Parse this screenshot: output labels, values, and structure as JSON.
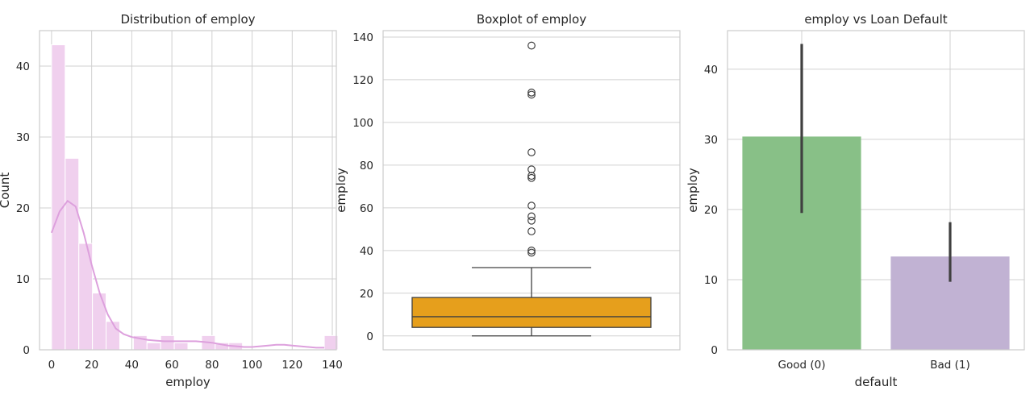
{
  "chart_data": [
    {
      "type": "histogram",
      "title": "Distribution of employ",
      "xlabel": "employ",
      "ylabel": "Count",
      "xlim": [
        -6,
        142
      ],
      "ylim": [
        0,
        45
      ],
      "xticks": [
        0,
        20,
        40,
        60,
        80,
        100,
        120,
        140
      ],
      "yticks": [
        0,
        10,
        20,
        30,
        40
      ],
      "bar_color": "#f0d0ee",
      "kde_color": "#dda0dd",
      "bin_width": 6.8,
      "bin_edges_start": 0,
      "counts": [
        43,
        27,
        15,
        8,
        4,
        0,
        2,
        1,
        2,
        1,
        0,
        2,
        1,
        1,
        0,
        0,
        0,
        0,
        0,
        0,
        2,
        0,
        0,
        0,
        0,
        0,
        0,
        0
      ],
      "kde": {
        "x": [
          0,
          4,
          8,
          12,
          16,
          20,
          24,
          28,
          32,
          36,
          40,
          44,
          48,
          52,
          56,
          60,
          64,
          68,
          72,
          76,
          80,
          84,
          88,
          92,
          96,
          100,
          104,
          108,
          112,
          116,
          120,
          124,
          128,
          132,
          136
        ],
        "y": [
          16.5,
          19.5,
          21,
          20.2,
          16.5,
          12,
          8,
          5,
          3,
          2.2,
          1.8,
          1.6,
          1.4,
          1.3,
          1.2,
          1.2,
          1.2,
          1.2,
          1.2,
          1.1,
          1.0,
          0.8,
          0.6,
          0.5,
          0.4,
          0.4,
          0.5,
          0.6,
          0.7,
          0.7,
          0.6,
          0.5,
          0.4,
          0.3,
          0.3
        ]
      },
      "grid": true
    },
    {
      "type": "box",
      "title": "Boxplot of employ",
      "ylabel": "employ",
      "ylim": [
        -6.5,
        143
      ],
      "yticks": [
        0,
        20,
        40,
        60,
        80,
        100,
        120,
        140
      ],
      "box_color": "#e69f1c",
      "stats": {
        "whislo": 0,
        "q1": 4,
        "median": 9,
        "q3": 18,
        "whishi": 32
      },
      "outliers": [
        136,
        114,
        113,
        86,
        78,
        75,
        74,
        61,
        56,
        54,
        49,
        40,
        39
      ],
      "grid": true
    },
    {
      "type": "bar",
      "title": "employ vs Loan Default",
      "xlabel": "default",
      "ylabel": "employ",
      "categories": [
        "Good (0)",
        "Bad (1)"
      ],
      "values": [
        30.4,
        13.3
      ],
      "ci": [
        [
          19.5,
          43.6
        ],
        [
          9.7,
          18.2
        ]
      ],
      "colors": [
        "#88c087",
        "#c1b2d3"
      ],
      "ylim": [
        0,
        45.5
      ],
      "yticks": [
        0,
        10,
        20,
        30,
        40
      ],
      "grid": true
    }
  ]
}
